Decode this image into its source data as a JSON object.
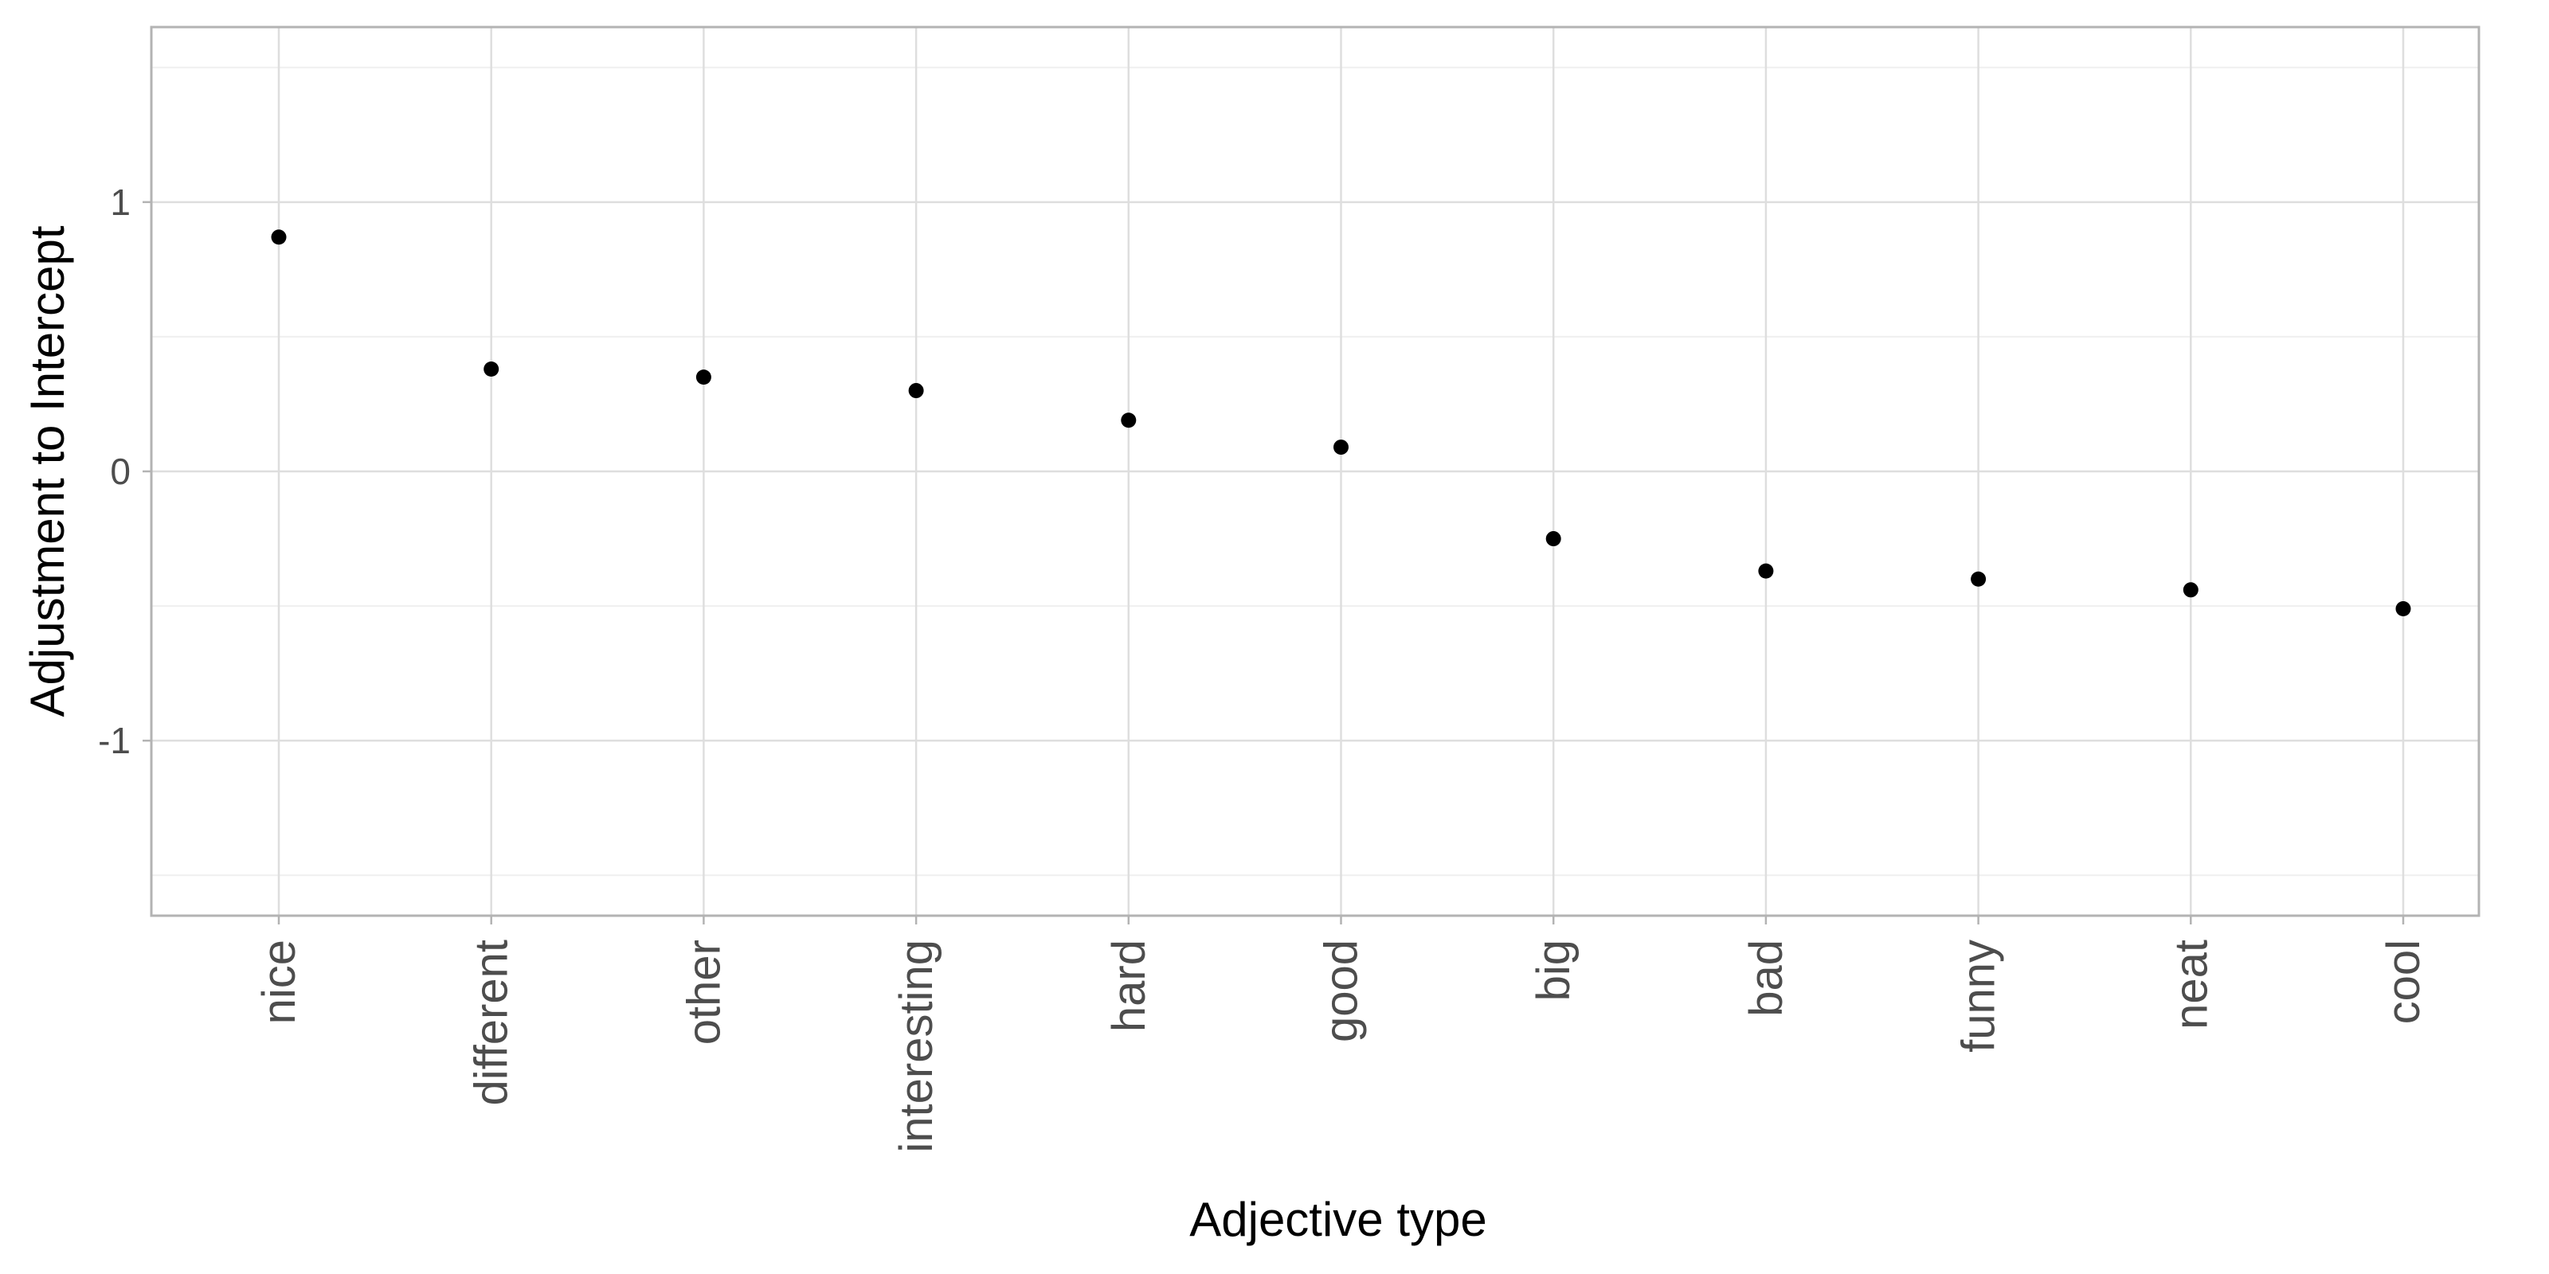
{
  "chart_data": {
    "type": "scatter",
    "title": "",
    "xlabel": "Adjective type",
    "ylabel": "Adjustment to Intercept",
    "categories": [
      "nice",
      "different",
      "other",
      "interesting",
      "hard",
      "good",
      "big",
      "bad",
      "funny",
      "neat",
      "cool"
    ],
    "values": [
      0.87,
      0.38,
      0.35,
      0.3,
      0.19,
      0.09,
      -0.25,
      -0.37,
      -0.4,
      -0.44,
      -0.51
    ],
    "ylim": [
      -1.65,
      1.65
    ],
    "yticks": [
      -1,
      0,
      1
    ],
    "ytick_labels": [
      "-1",
      "0",
      "1"
    ],
    "y_minor_ticks": [
      -1.5,
      -0.5,
      0.5,
      1.5
    ],
    "grid": true,
    "legend": "none",
    "colors": {
      "point": "#000000",
      "grid_major": "#dedede",
      "grid_minor": "#efefef",
      "panel_border": "#b3b3b3",
      "tick_label": "#4d4d4d",
      "axis_title": "#000000"
    }
  }
}
